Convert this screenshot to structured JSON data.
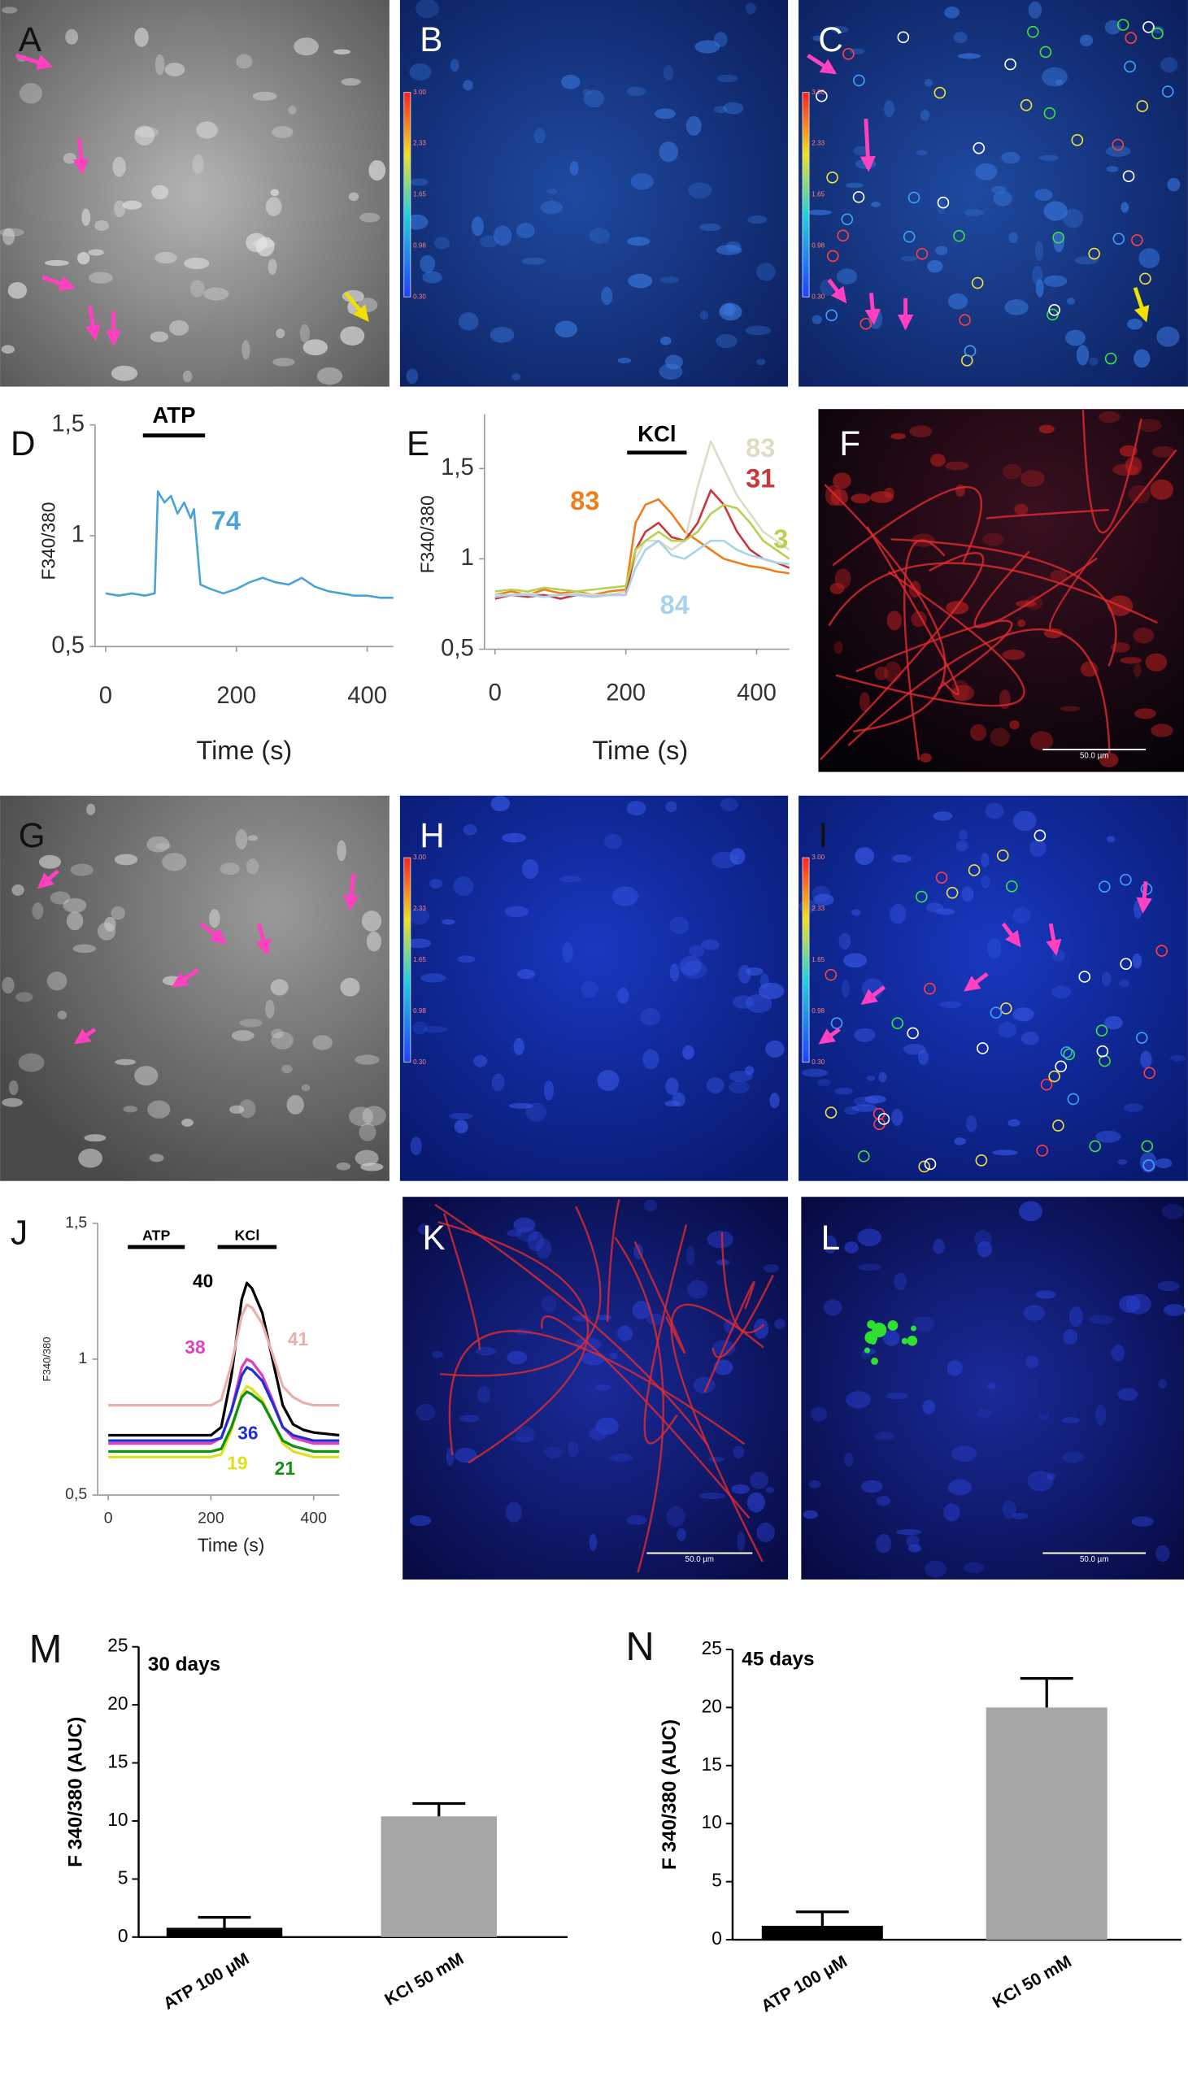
{
  "images": [
    {
      "label": "A"
    },
    {
      "label": "B",
      "colorbar": [
        "3.00",
        "2.33",
        "1.65",
        "0.98",
        "0.30"
      ]
    },
    {
      "label": "C",
      "colorbar": [
        "3.00",
        "2.33",
        "1.65",
        "0.98",
        "0.30"
      ]
    },
    {
      "label": "F",
      "scale_bar": "50.0 µm"
    },
    {
      "label": "G"
    },
    {
      "label": "H",
      "colorbar": [
        "3.00",
        "2.33",
        "1.65",
        "0.98",
        "0.30"
      ]
    },
    {
      "label": "I",
      "colorbar": [
        "3.00",
        "2.33",
        "1.65",
        "0.98",
        "0.30"
      ]
    },
    {
      "label": "K",
      "scale_bar": "50.0 µm"
    },
    {
      "label": "L",
      "scale_bar": "50.0 µm"
    }
  ],
  "chart_data": [
    {
      "type": "line",
      "panel": "D",
      "xlabel": "Time (s)",
      "ylabel": "F340/380",
      "xlim": [
        0,
        440
      ],
      "ylim": [
        0.5,
        1.5
      ],
      "xticks": [
        0,
        200,
        400
      ],
      "yticks": [
        {
          "value": 0.5,
          "label": "0,5"
        },
        1,
        {
          "value": 1.5,
          "label": "1,5"
        }
      ],
      "annotations": [
        {
          "text": "ATP",
          "x": [
            57,
            152
          ]
        }
      ],
      "x": [
        0,
        20,
        40,
        60,
        75,
        80,
        90,
        100,
        110,
        120,
        130,
        135,
        145,
        160,
        180,
        200,
        220,
        240,
        260,
        280,
        300,
        320,
        340,
        360,
        380,
        400,
        420,
        440
      ],
      "series": [
        {
          "name": "74",
          "color": "#4aa3d8",
          "values": [
            0.74,
            0.73,
            0.74,
            0.73,
            0.74,
            1.2,
            1.15,
            1.18,
            1.1,
            1.15,
            1.08,
            1.12,
            0.78,
            0.76,
            0.74,
            0.76,
            0.79,
            0.81,
            0.79,
            0.78,
            0.81,
            0.77,
            0.75,
            0.74,
            0.73,
            0.73,
            0.72,
            0.72
          ]
        }
      ]
    },
    {
      "type": "line",
      "panel": "E",
      "xlabel": "Time (s)",
      "ylabel": "F340/380",
      "xlim": [
        0,
        450
      ],
      "ylim": [
        0.5,
        1.8
      ],
      "xticks": [
        0,
        200,
        400
      ],
      "yticks": [
        {
          "value": 0.5,
          "label": "0,5"
        },
        1,
        {
          "value": 1.5,
          "label": "1,5"
        }
      ],
      "annotations": [
        {
          "text": "KCl",
          "x": [
            202,
            293
          ]
        }
      ],
      "x": [
        0,
        25,
        50,
        75,
        100,
        125,
        150,
        175,
        200,
        215,
        230,
        250,
        270,
        290,
        310,
        330,
        350,
        370,
        390,
        410,
        430,
        450
      ],
      "series": [
        {
          "name": "83",
          "color": "#f07d1a",
          "values": [
            0.8,
            0.82,
            0.8,
            0.83,
            0.81,
            0.82,
            0.8,
            0.82,
            0.83,
            1.2,
            1.3,
            1.33,
            1.25,
            1.15,
            1.1,
            1.05,
            1.0,
            0.98,
            0.96,
            0.95,
            0.93,
            0.92
          ]
        },
        {
          "name": "83",
          "color": "#dedcc4",
          "values": [
            0.8,
            0.8,
            0.81,
            0.8,
            0.8,
            0.81,
            0.8,
            0.8,
            0.82,
            1.0,
            1.1,
            1.1,
            1.05,
            1.1,
            1.4,
            1.65,
            1.5,
            1.35,
            1.25,
            1.15,
            1.1,
            1.05
          ]
        },
        {
          "name": "31",
          "color": "#c8383a",
          "values": [
            0.78,
            0.8,
            0.79,
            0.8,
            0.78,
            0.8,
            0.79,
            0.8,
            0.8,
            1.05,
            1.15,
            1.2,
            1.12,
            1.1,
            1.2,
            1.38,
            1.3,
            1.15,
            1.05,
            1.0,
            0.98,
            0.95
          ]
        },
        {
          "name": "3",
          "color": "#b8d050",
          "values": [
            0.82,
            0.83,
            0.82,
            0.84,
            0.83,
            0.82,
            0.83,
            0.84,
            0.85,
            1.05,
            1.1,
            1.15,
            1.1,
            1.1,
            1.15,
            1.25,
            1.3,
            1.28,
            1.2,
            1.1,
            1.05,
            1.0
          ]
        },
        {
          "name": "84",
          "color": "#a8d4ea",
          "values": [
            0.79,
            0.8,
            0.8,
            0.79,
            0.8,
            0.8,
            0.79,
            0.8,
            0.8,
            0.95,
            1.05,
            1.1,
            1.02,
            1.0,
            1.05,
            1.1,
            1.1,
            1.05,
            1.02,
            1.0,
            0.98,
            0.97
          ]
        }
      ]
    },
    {
      "type": "line",
      "panel": "J",
      "xlabel": "Time (s)",
      "ylabel": "F340/380",
      "xlim": [
        0,
        450
      ],
      "ylim": [
        0.5,
        1.5
      ],
      "xticks": [
        0,
        200,
        400
      ],
      "yticks": [
        {
          "value": 0.5,
          "label": "0,5"
        },
        1,
        {
          "value": 1.5,
          "label": "1,5"
        }
      ],
      "annotations": [
        {
          "text": "ATP",
          "x": [
            38,
            149
          ]
        },
        {
          "text": "KCl",
          "x": [
            213,
            328
          ]
        }
      ],
      "x": [
        0,
        50,
        100,
        150,
        200,
        220,
        240,
        260,
        270,
        280,
        300,
        320,
        340,
        360,
        380,
        400,
        450
      ],
      "series": [
        {
          "name": "40",
          "color": "#000000",
          "values": [
            0.72,
            0.72,
            0.72,
            0.72,
            0.72,
            0.75,
            0.94,
            1.22,
            1.28,
            1.26,
            1.17,
            1.0,
            0.83,
            0.76,
            0.74,
            0.73,
            0.72
          ]
        },
        {
          "name": "41",
          "color": "#e8b0a8",
          "values": [
            0.83,
            0.83,
            0.83,
            0.83,
            0.83,
            0.85,
            0.98,
            1.16,
            1.2,
            1.19,
            1.13,
            1.02,
            0.9,
            0.86,
            0.84,
            0.83,
            0.83
          ]
        },
        {
          "name": "38",
          "color": "#e040c0",
          "values": [
            0.69,
            0.69,
            0.69,
            0.69,
            0.69,
            0.71,
            0.81,
            0.97,
            1.0,
            0.99,
            0.94,
            0.85,
            0.75,
            0.71,
            0.7,
            0.69,
            0.69
          ]
        },
        {
          "name": "36",
          "color": "#2030d0",
          "values": [
            0.7,
            0.7,
            0.7,
            0.7,
            0.7,
            0.71,
            0.81,
            0.94,
            0.97,
            0.96,
            0.92,
            0.84,
            0.75,
            0.72,
            0.71,
            0.7,
            0.7
          ]
        },
        {
          "name": "19",
          "color": "#e0e020",
          "values": [
            0.64,
            0.64,
            0.64,
            0.64,
            0.64,
            0.65,
            0.74,
            0.87,
            0.9,
            0.89,
            0.85,
            0.77,
            0.69,
            0.66,
            0.65,
            0.64,
            0.64
          ]
        },
        {
          "name": "21",
          "color": "#109010",
          "values": [
            0.66,
            0.66,
            0.66,
            0.66,
            0.66,
            0.67,
            0.75,
            0.86,
            0.88,
            0.87,
            0.84,
            0.77,
            0.7,
            0.68,
            0.67,
            0.66,
            0.66
          ]
        }
      ]
    },
    {
      "type": "bar",
      "panel": "M",
      "title": "30 days",
      "ylabel": "F 340/380 (AUC)",
      "ylim": [
        0,
        25
      ],
      "yticks": [
        0,
        5,
        10,
        15,
        20,
        25
      ],
      "categories": [
        "ATP 100 μM",
        "KCl 50 mM"
      ],
      "values": [
        0.8,
        10.4
      ],
      "errors": [
        0.9,
        1.1
      ],
      "colors": [
        "#000000",
        "#a6a6a6"
      ]
    },
    {
      "type": "bar",
      "panel": "N",
      "title": "45 days",
      "ylabel": "F 340/380 (AUC)",
      "ylim": [
        0,
        25
      ],
      "yticks": [
        0,
        5,
        10,
        15,
        20,
        25
      ],
      "categories": [
        "ATP 100 μM",
        "KCl 50 mM"
      ],
      "values": [
        1.2,
        20
      ],
      "errors": [
        1.2,
        2.5
      ],
      "colors": [
        "#000000",
        "#a6a6a6"
      ]
    }
  ]
}
